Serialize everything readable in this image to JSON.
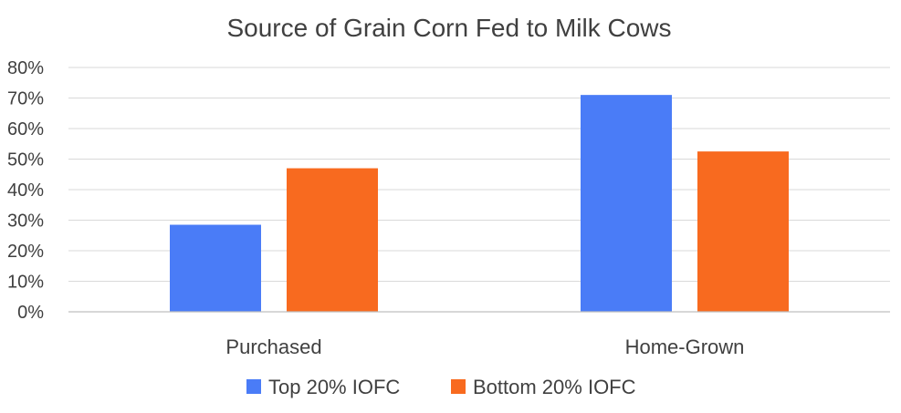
{
  "chart_data": {
    "type": "bar",
    "title": "Source of Grain Corn Fed to Milk Cows",
    "categories": [
      "Purchased",
      "Home-Grown"
    ],
    "series": [
      {
        "name": "Top 20% IOFC",
        "values": [
          28.5,
          71
        ],
        "color": "#4a7cf7"
      },
      {
        "name": "Bottom 20% IOFC",
        "values": [
          47,
          52.5
        ],
        "color": "#f86a1f"
      }
    ],
    "ylim": [
      0,
      80
    ],
    "yticks": [
      0,
      10,
      20,
      30,
      40,
      50,
      60,
      70,
      80
    ],
    "ytick_labels": [
      "0%",
      "10%",
      "20%",
      "30%",
      "40%",
      "50%",
      "60%",
      "70%",
      "80%"
    ],
    "grid": true,
    "legend": "bottom"
  }
}
